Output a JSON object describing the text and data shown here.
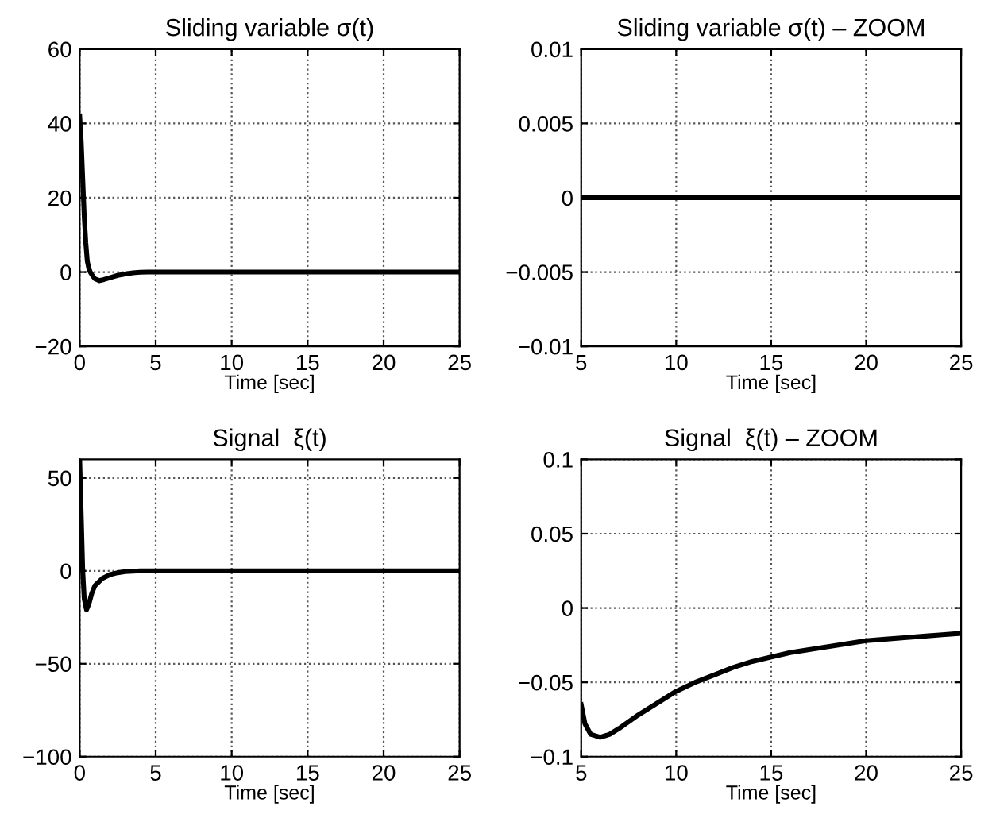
{
  "chart_data": [
    {
      "type": "line",
      "title": "Sliding variable σ(t)",
      "xlabel": "Time [sec]",
      "grid": true,
      "line_style": "solid",
      "series": [
        {
          "color": "#000000",
          "x": [
            0,
            0.1,
            0.2,
            0.3,
            0.4,
            0.5,
            0.6,
            0.7,
            0.85,
            1.0,
            1.3,
            1.6,
            2,
            2.5,
            3,
            3.5,
            4,
            4.5,
            10,
            15,
            20,
            25
          ],
          "values": [
            42,
            35,
            25,
            15,
            8,
            3,
            1,
            0,
            -1,
            -1.8,
            -2.3,
            -2,
            -1.5,
            -0.9,
            -0.5,
            -0.2,
            -0.05,
            0,
            0,
            0,
            0,
            0
          ]
        }
      ],
      "xlim": [
        0,
        25
      ],
      "xticks": [
        0,
        5,
        10,
        15,
        20,
        25
      ],
      "ylim": [
        -20,
        60
      ],
      "yticks": [
        {
          "value": -20,
          "label": "−20"
        },
        0,
        20,
        40,
        60
      ]
    },
    {
      "type": "line",
      "title": "Sliding variable σ(t) – ZOOM",
      "xlabel": "Time [sec]",
      "grid": true,
      "line_style": "solid",
      "series": [
        {
          "color": "#000000",
          "x": [
            5,
            10,
            15,
            20,
            25
          ],
          "values": [
            0,
            0,
            0,
            0,
            0
          ]
        }
      ],
      "xlim": [
        5,
        25
      ],
      "xticks": [
        5,
        10,
        15,
        20,
        25
      ],
      "ylim": [
        -0.01,
        0.01
      ],
      "yticks": [
        {
          "value": -0.01,
          "label": "−0.01"
        },
        {
          "value": -0.005,
          "label": "−0.005"
        },
        0,
        0.005,
        0.01
      ]
    },
    {
      "type": "line",
      "title": "Signal  ξ(t)",
      "xlabel": "Time [sec]",
      "grid": true,
      "line_style": "solid",
      "series": [
        {
          "color": "#000000",
          "x": [
            0,
            0.1,
            0.2,
            0.3,
            0.45,
            0.6,
            0.8,
            1.0,
            1.5,
            2,
            2.5,
            3,
            4,
            10,
            15,
            20,
            25
          ],
          "values": [
            60,
            30,
            0,
            -15,
            -21,
            -18,
            -12,
            -8,
            -4,
            -2,
            -1,
            -0.4,
            0,
            0,
            0,
            0,
            0
          ]
        }
      ],
      "xlim": [
        0,
        25
      ],
      "xticks": [
        0,
        5,
        10,
        15,
        20,
        25
      ],
      "ylim": [
        -100,
        60
      ],
      "yticks": [
        {
          "value": -100,
          "label": "−100"
        },
        {
          "value": -50,
          "label": "−50"
        },
        0,
        50
      ]
    },
    {
      "type": "line",
      "title": "Signal  ξ(t) – ZOOM",
      "xlabel": "Time [sec]",
      "grid": true,
      "line_style": "solid",
      "series": [
        {
          "color": "#000000",
          "x": [
            5,
            5.2,
            5.5,
            6,
            6.5,
            7,
            8,
            9,
            10,
            11,
            12,
            13,
            14,
            15,
            16,
            17,
            18,
            19,
            20,
            21,
            22,
            23,
            24,
            25
          ],
          "values": [
            -0.065,
            -0.078,
            -0.085,
            -0.087,
            -0.085,
            -0.081,
            -0.072,
            -0.064,
            -0.056,
            -0.05,
            -0.045,
            -0.04,
            -0.036,
            -0.033,
            -0.03,
            -0.028,
            -0.026,
            -0.024,
            -0.022,
            -0.021,
            -0.02,
            -0.019,
            -0.018,
            -0.017
          ]
        }
      ],
      "xlim": [
        5,
        25
      ],
      "xticks": [
        5,
        10,
        15,
        20,
        25
      ],
      "ylim": [
        -0.1,
        0.1
      ],
      "yticks": [
        {
          "value": -0.1,
          "label": "−0.1"
        },
        {
          "value": -0.05,
          "label": "−0.05"
        },
        0,
        0.05,
        0.1
      ]
    }
  ]
}
